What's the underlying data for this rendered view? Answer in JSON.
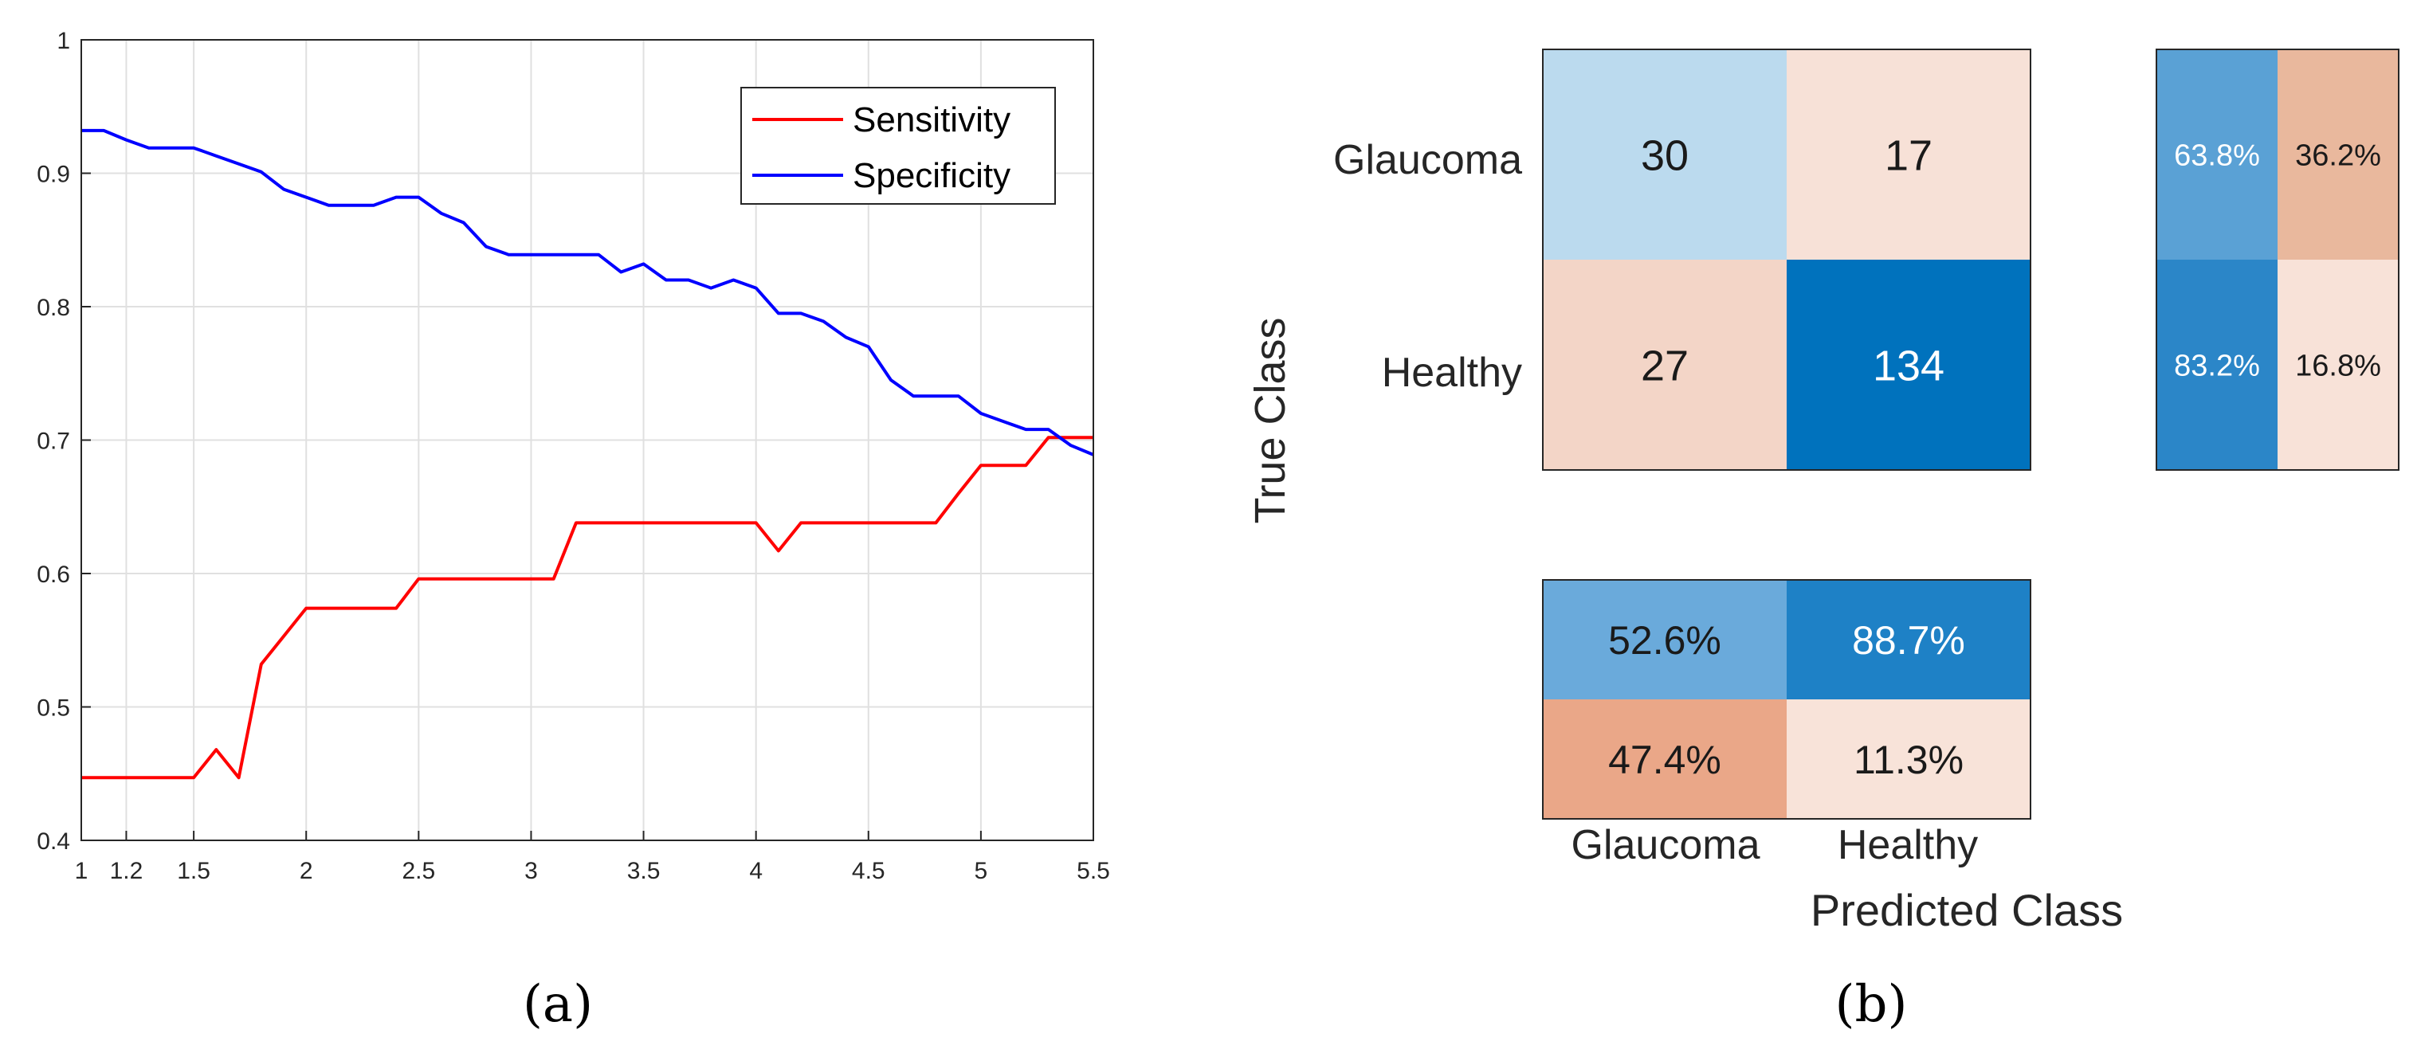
{
  "chart_data": [
    {
      "type": "line",
      "xlim": [
        1,
        5.5
      ],
      "ylim": [
        0.4,
        1
      ],
      "grid": true,
      "x_ticks": [
        1,
        1.2,
        1.5,
        2,
        2.5,
        3,
        3.5,
        4,
        4.5,
        5,
        5.5
      ],
      "x_tick_labels": [
        "1",
        "1.2",
        "1.5",
        "2",
        "2.5",
        "3",
        "3.5",
        "4",
        "4.5",
        "5",
        "5.5"
      ],
      "y_ticks": [
        0.4,
        0.5,
        0.6,
        0.7,
        0.8,
        0.9,
        1
      ],
      "y_tick_labels": [
        "0.4",
        "0.5",
        "0.6",
        "0.7",
        "0.8",
        "0.9",
        "1"
      ],
      "legend_position": "top-right",
      "caption": "(a)",
      "series": [
        {
          "name": "Sensitivity",
          "color": "#ff0000",
          "x": [
            1,
            1.1,
            1.2,
            1.3,
            1.4,
            1.5,
            1.6,
            1.7,
            1.8,
            1.9,
            2,
            2.1,
            2.2,
            2.3,
            2.4,
            2.5,
            2.6,
            2.7,
            2.8,
            2.9,
            3,
            3.1,
            3.2,
            3.3,
            3.4,
            3.5,
            3.6,
            3.7,
            3.8,
            3.9,
            4,
            4.1,
            4.2,
            4.3,
            4.4,
            4.5,
            4.6,
            4.7,
            4.8,
            4.9,
            5,
            5.1,
            5.2,
            5.3,
            5.4,
            5.5
          ],
          "y": [
            0.447,
            0.447,
            0.447,
            0.447,
            0.447,
            0.447,
            0.468,
            0.447,
            0.532,
            0.553,
            0.574,
            0.574,
            0.574,
            0.574,
            0.574,
            0.596,
            0.596,
            0.596,
            0.596,
            0.596,
            0.596,
            0.596,
            0.638,
            0.638,
            0.638,
            0.638,
            0.638,
            0.638,
            0.638,
            0.638,
            0.638,
            0.617,
            0.638,
            0.638,
            0.638,
            0.638,
            0.638,
            0.638,
            0.638,
            0.66,
            0.681,
            0.681,
            0.681,
            0.702,
            0.702,
            0.702
          ]
        },
        {
          "name": "Specificity",
          "color": "#0000ff",
          "x": [
            1,
            1.1,
            1.2,
            1.3,
            1.4,
            1.5,
            1.6,
            1.7,
            1.8,
            1.9,
            2,
            2.1,
            2.2,
            2.3,
            2.4,
            2.5,
            2.6,
            2.7,
            2.8,
            2.9,
            3,
            3.1,
            3.2,
            3.3,
            3.4,
            3.5,
            3.6,
            3.7,
            3.8,
            3.9,
            4,
            4.1,
            4.2,
            4.3,
            4.4,
            4.5,
            4.6,
            4.7,
            4.8,
            4.9,
            5,
            5.1,
            5.2,
            5.3,
            5.4,
            5.5
          ],
          "y": [
            0.932,
            0.932,
            0.925,
            0.919,
            0.919,
            0.919,
            0.913,
            0.907,
            0.901,
            0.888,
            0.882,
            0.876,
            0.876,
            0.876,
            0.882,
            0.882,
            0.87,
            0.863,
            0.845,
            0.839,
            0.839,
            0.839,
            0.839,
            0.839,
            0.826,
            0.832,
            0.82,
            0.82,
            0.814,
            0.82,
            0.814,
            0.795,
            0.795,
            0.789,
            0.777,
            0.77,
            0.745,
            0.733,
            0.733,
            0.733,
            0.72,
            0.714,
            0.708,
            0.708,
            0.696,
            0.689
          ]
        }
      ]
    },
    {
      "type": "heatmap",
      "ylabel": "True Class",
      "xlabel": "Predicted Class",
      "row_labels": [
        "Glaucoma",
        "Healthy"
      ],
      "col_labels": [
        "Glaucoma",
        "Healthy"
      ],
      "values": [
        [
          30,
          17
        ],
        [
          27,
          134
        ]
      ],
      "row_summary": [
        [
          "63.8%",
          "36.2%"
        ],
        [
          "83.2%",
          "16.8%"
        ]
      ],
      "col_summary": [
        [
          "52.6%",
          "88.7%"
        ],
        [
          "47.4%",
          "11.3%"
        ]
      ],
      "caption": "(b)",
      "colors": {
        "cm": [
          [
            "#bbdaee",
            "#f7e1d7"
          ],
          [
            "#f3d5c7",
            "#0072bd"
          ]
        ],
        "row_summary": [
          [
            "#5aa1d5",
            "#e9b89d"
          ],
          [
            "#2b86c8",
            "#f8e2d8"
          ]
        ],
        "col_summary": [
          [
            "#6aaadb",
            "#1e81c6"
          ],
          [
            "#eaa788",
            "#f8e3d9"
          ]
        ]
      }
    }
  ]
}
